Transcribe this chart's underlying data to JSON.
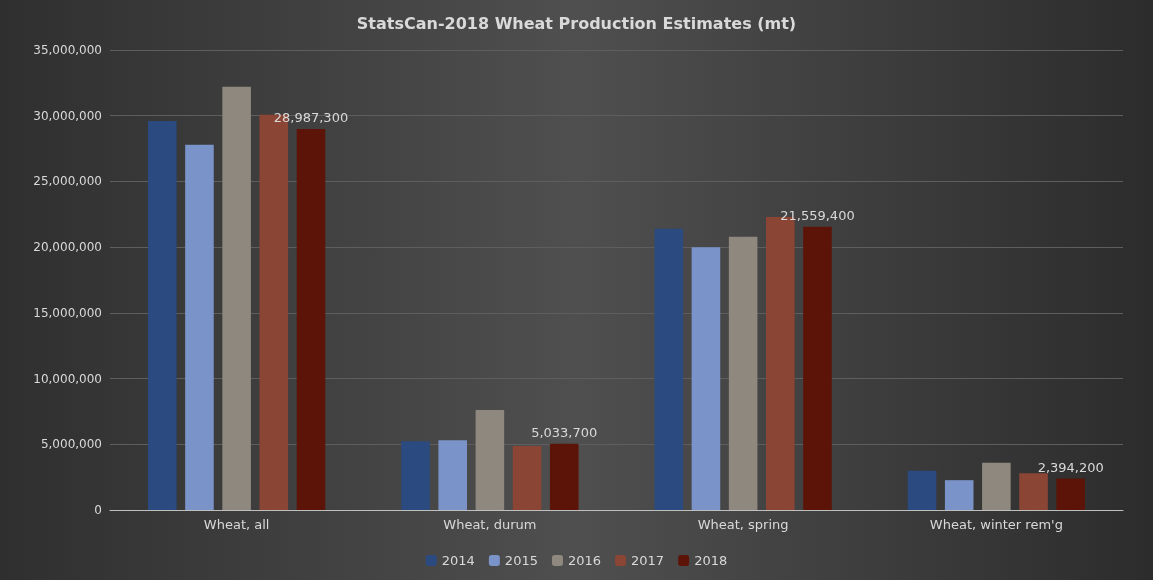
{
  "chart_data": {
    "type": "bar",
    "title": "StatsCan-2018 Wheat Production Estimates (mt)",
    "categories": [
      "Wheat, all",
      "Wheat, durum",
      "Wheat, spring",
      "Wheat, winter rem'g"
    ],
    "series": [
      {
        "name": "2014",
        "color": "#2b4a80",
        "values": [
          29600000,
          5240000,
          21400000,
          2980000
        ]
      },
      {
        "name": "2015",
        "color": "#7a93c8",
        "values": [
          27800000,
          5300000,
          20000000,
          2270000
        ]
      },
      {
        "name": "2016",
        "color": "#8f887e",
        "values": [
          32200000,
          7600000,
          20800000,
          3600000
        ]
      },
      {
        "name": "2017",
        "color": "#8b4535",
        "values": [
          30070000,
          4870000,
          22300000,
          2800000
        ]
      },
      {
        "name": "2018",
        "color": "#5c1408",
        "values": [
          28987300,
          5033700,
          21559400,
          2394200
        ],
        "value_labels": [
          "28,987,300",
          "5,033,700",
          "21,559,400",
          "2,394,200"
        ]
      }
    ],
    "ylim": [
      0,
      35000000
    ],
    "yticks": [
      {
        "value": 0,
        "label": "0"
      },
      {
        "value": 5000000,
        "label": "5,000,000"
      },
      {
        "value": 10000000,
        "label": "10,000,000"
      },
      {
        "value": 15000000,
        "label": "15,000,000"
      },
      {
        "value": 20000000,
        "label": "20,000,000"
      },
      {
        "value": 25000000,
        "label": "25,000,000"
      },
      {
        "value": 30000000,
        "label": "30,000,000"
      },
      {
        "value": 35000000,
        "label": "35,000,000"
      }
    ],
    "grid": true,
    "legend": "bottom"
  }
}
